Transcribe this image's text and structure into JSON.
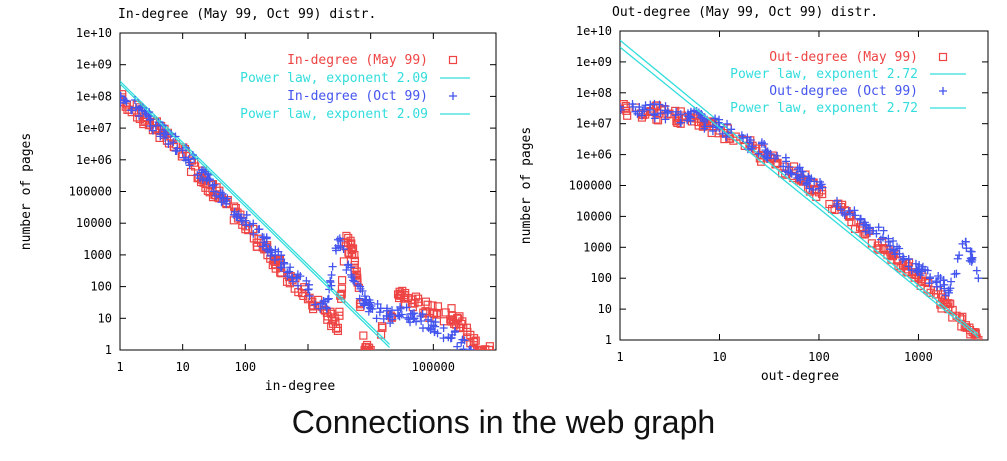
{
  "caption": "Connections in the web graph",
  "colors": {
    "may": "#ee4444",
    "oct": "#4455ee",
    "fit": "#33dddd",
    "axis": "#000000"
  },
  "chart_data": [
    {
      "type": "scatter",
      "title": "In-degree (May 99, Oct 99) distr.",
      "xlabel": "in-degree",
      "ylabel": "number of pages",
      "xscale": "log",
      "yscale": "log",
      "xlim": [
        1,
        1000000
      ],
      "ylim": [
        1,
        10000000000
      ],
      "xticks": [
        "1",
        "10",
        "100",
        "100000"
      ],
      "yticks": [
        "1",
        "10",
        "100",
        "1000",
        "10000",
        "100000",
        "1e+06",
        "1e+07",
        "1e+08",
        "1e+09",
        "1e+10"
      ],
      "legend_position": "top-right",
      "series": [
        {
          "name": "In-degree (May 99)",
          "marker": "square",
          "color": "#ee4444",
          "points": [
            [
              1,
              80000000
            ],
            [
              2,
              30000000
            ],
            [
              3,
              15000000
            ],
            [
              5,
              6000000
            ],
            [
              10,
              1500000
            ],
            [
              20,
              300000
            ],
            [
              30,
              120000
            ],
            [
              50,
              40000
            ],
            [
              100,
              8000
            ],
            [
              200,
              1500
            ],
            [
              300,
              600
            ],
            [
              500,
              200
            ],
            [
              1000,
              40
            ],
            [
              2000,
              15
            ],
            [
              3000,
              5
            ],
            [
              4000,
              2500
            ],
            [
              5000,
              1500
            ],
            [
              6000,
              300
            ],
            [
              8000,
              1
            ],
            [
              10000,
              1
            ],
            [
              30000,
              60
            ],
            [
              50000,
              30
            ],
            [
              100000,
              15
            ],
            [
              200000,
              12
            ],
            [
              300000,
              5
            ],
            [
              500000,
              1
            ],
            [
              800000,
              1
            ]
          ]
        },
        {
          "name": "Power law, exponent 2.09",
          "type": "line",
          "color": "#33dddd",
          "points": [
            [
              1,
              300000000
            ],
            [
              20000,
              1.5
            ]
          ]
        },
        {
          "name": "In-degree (Oct 99)",
          "marker": "plus",
          "color": "#4455ee",
          "points": [
            [
              1,
              100000000
            ],
            [
              2,
              40000000
            ],
            [
              3,
              18000000
            ],
            [
              5,
              7000000
            ],
            [
              10,
              2000000
            ],
            [
              20,
              400000
            ],
            [
              30,
              150000
            ],
            [
              50,
              50000
            ],
            [
              100,
              12000
            ],
            [
              200,
              2500
            ],
            [
              300,
              1000
            ],
            [
              500,
              300
            ],
            [
              1000,
              80
            ],
            [
              2000,
              20
            ],
            [
              3000,
              3000
            ],
            [
              5000,
              200
            ],
            [
              8000,
              30
            ],
            [
              10000,
              20
            ],
            [
              20000,
              12
            ],
            [
              30000,
              20
            ],
            [
              50000,
              10
            ],
            [
              100000,
              6
            ],
            [
              200000,
              3
            ],
            [
              400000,
              1
            ]
          ]
        },
        {
          "name": "Power law, exponent 2.09",
          "type": "line",
          "color": "#33dddd",
          "points": [
            [
              1,
              250000000
            ],
            [
              20000,
              1.2
            ]
          ]
        }
      ]
    },
    {
      "type": "scatter",
      "title": "Out-degree (May 99, Oct 99) distr.",
      "xlabel": "out-degree",
      "ylabel": "number of pages",
      "xscale": "log",
      "yscale": "log",
      "xlim": [
        1,
        5000
      ],
      "ylim": [
        1,
        10000000000
      ],
      "xticks": [
        "1",
        "10",
        "100",
        "1000"
      ],
      "yticks": [
        "1",
        "10",
        "100",
        "1000",
        "10000",
        "100000",
        "1e+06",
        "1e+07",
        "1e+08",
        "1e+09",
        "1e+10"
      ],
      "legend_position": "top-right",
      "series": [
        {
          "name": "Out-degree (May 99)",
          "marker": "square",
          "color": "#ee4444",
          "points": [
            [
              1,
              30000000
            ],
            [
              2,
              25000000
            ],
            [
              3,
              20000000
            ],
            [
              5,
              15000000
            ],
            [
              7,
              10000000
            ],
            [
              10,
              6000000
            ],
            [
              20,
              1800000
            ],
            [
              30,
              800000
            ],
            [
              50,
              300000
            ],
            [
              70,
              150000
            ],
            [
              100,
              60000
            ],
            [
              200,
              10000
            ],
            [
              300,
              3000
            ],
            [
              500,
              800
            ],
            [
              700,
              300
            ],
            [
              1000,
              100
            ],
            [
              1500,
              30
            ],
            [
              2000,
              10
            ],
            [
              3000,
              3
            ],
            [
              4000,
              1
            ]
          ]
        },
        {
          "name": "Power law, exponent 2.72",
          "type": "line",
          "color": "#33dddd",
          "points": [
            [
              1,
              5000000000
            ],
            [
              4000,
              1.5
            ]
          ]
        },
        {
          "name": "Out-degree (Oct 99)",
          "marker": "plus",
          "color": "#4455ee",
          "points": [
            [
              1,
              35000000
            ],
            [
              2,
              28000000
            ],
            [
              3,
              22000000
            ],
            [
              5,
              17000000
            ],
            [
              7,
              12000000
            ],
            [
              10,
              8000000
            ],
            [
              20,
              2500000
            ],
            [
              30,
              1200000
            ],
            [
              50,
              400000
            ],
            [
              70,
              200000
            ],
            [
              100,
              80000
            ],
            [
              200,
              15000
            ],
            [
              300,
              5000
            ],
            [
              500,
              1500
            ],
            [
              700,
              500
            ],
            [
              1000,
              200
            ],
            [
              1500,
              80
            ],
            [
              2000,
              40
            ],
            [
              3000,
              1500
            ],
            [
              4000,
              100
            ]
          ]
        },
        {
          "name": "Power law, exponent 2.72",
          "type": "line",
          "color": "#33dddd",
          "points": [
            [
              1,
              3000000000
            ],
            [
              4000,
              1.2
            ]
          ]
        }
      ]
    }
  ]
}
